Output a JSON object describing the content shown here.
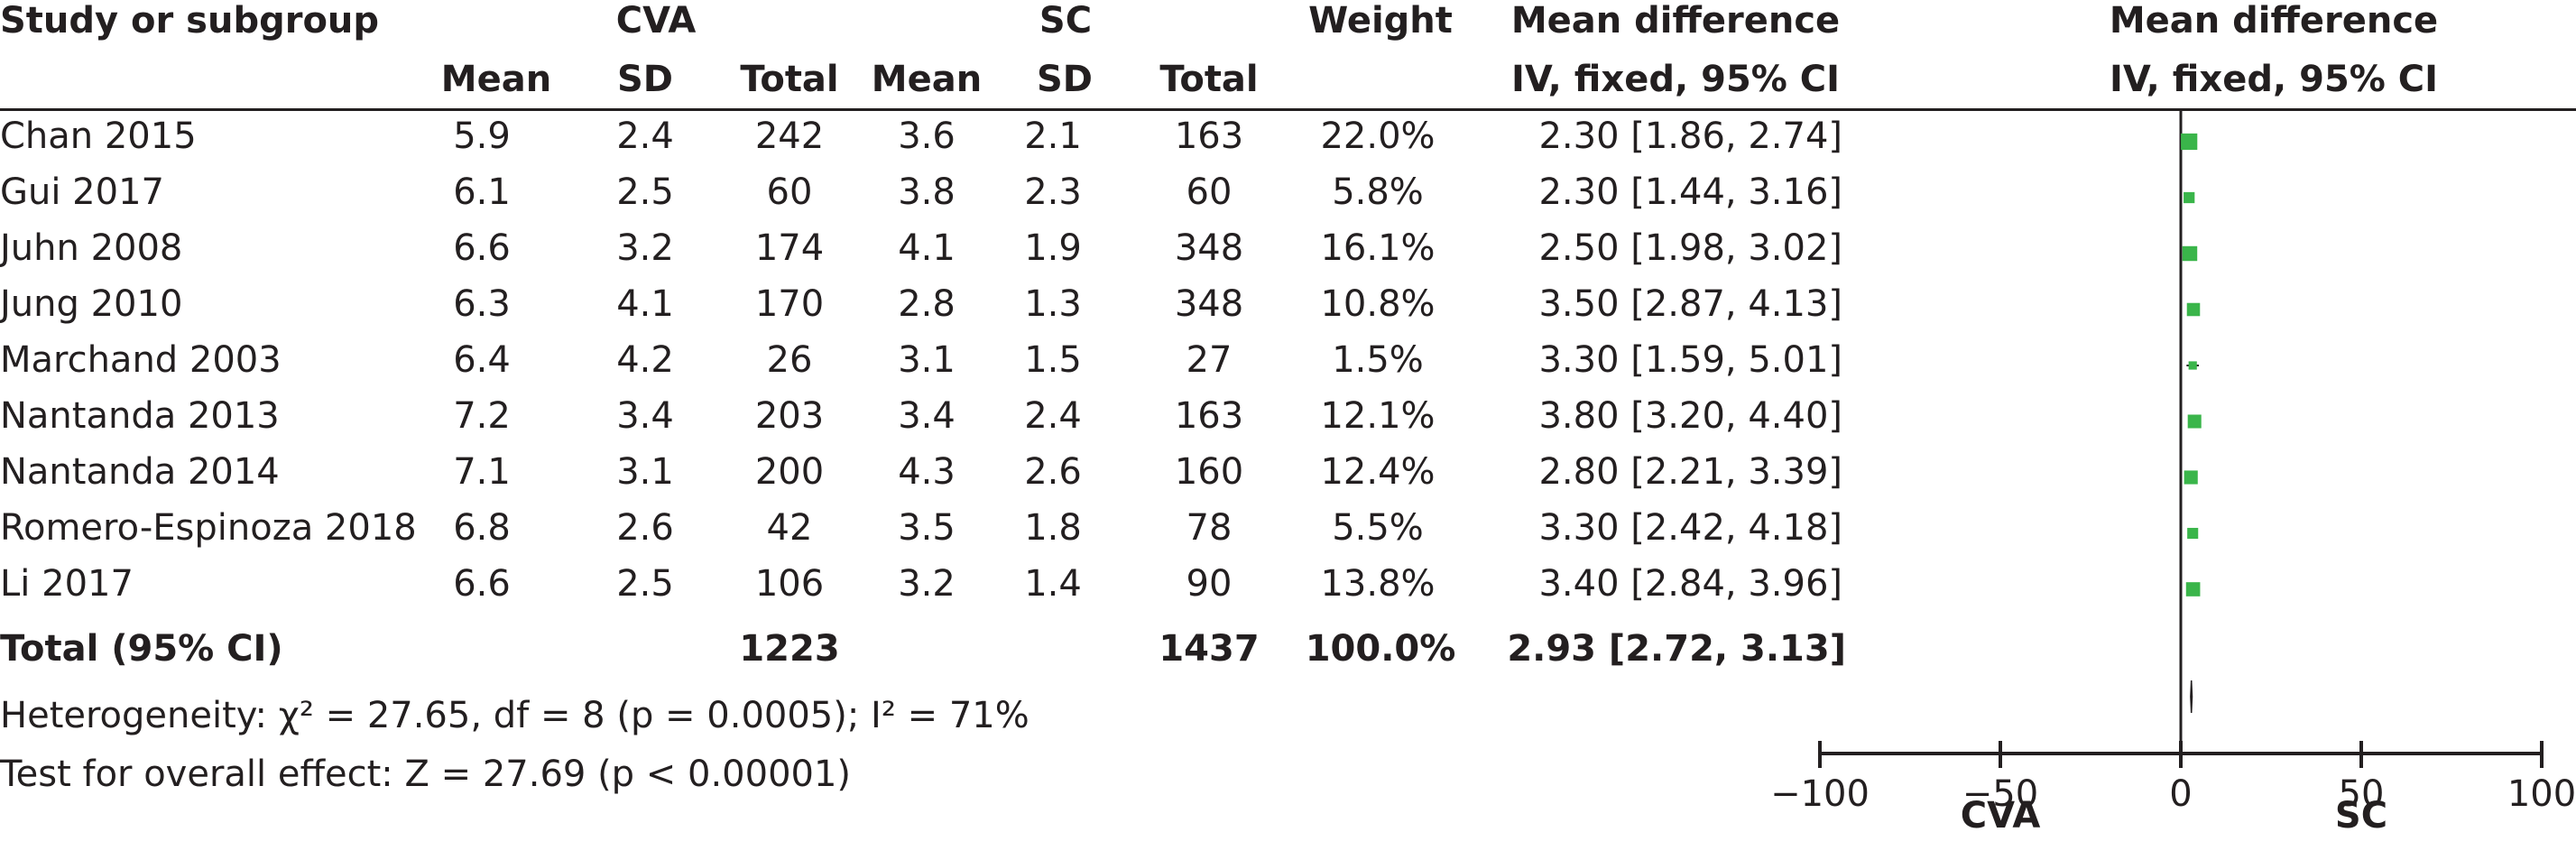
{
  "header": {
    "study_col": "Study or subgroup",
    "group1": "CVA",
    "group2": "SC",
    "weight": "Weight",
    "md_title": "Mean difference",
    "md_subtitle": "IV, fixed, 95% CI",
    "plot_title": "Mean difference",
    "plot_subtitle": "IV, fixed, 95% CI",
    "mean": "Mean",
    "sd": "SD",
    "total": "Total"
  },
  "studies": [
    {
      "name": "Chan 2015",
      "m1": "5.9",
      "sd1": "2.4",
      "n1": "242",
      "m2": "3.6",
      "sd2": "2.1",
      "n2": "163",
      "weight": "22.0%",
      "ci": "2.30 [1.86, 2.74]"
    },
    {
      "name": "Gui 2017",
      "m1": "6.1",
      "sd1": "2.5",
      "n1": "60",
      "m2": "3.8",
      "sd2": "2.3",
      "n2": "60",
      "weight": "5.8%",
      "ci": "2.30 [1.44, 3.16]"
    },
    {
      "name": "Juhn 2008",
      "m1": "6.6",
      "sd1": "3.2",
      "n1": "174",
      "m2": "4.1",
      "sd2": "1.9",
      "n2": "348",
      "weight": "16.1%",
      "ci": "2.50 [1.98, 3.02]"
    },
    {
      "name": "Jung 2010",
      "m1": "6.3",
      "sd1": "4.1",
      "n1": "170",
      "m2": "2.8",
      "sd2": "1.3",
      "n2": "348",
      "weight": "10.8%",
      "ci": "3.50 [2.87, 4.13]"
    },
    {
      "name": "Marchand 2003",
      "m1": "6.4",
      "sd1": "4.2",
      "n1": "26",
      "m2": "3.1",
      "sd2": "1.5",
      "n2": "27",
      "weight": "1.5%",
      "ci": "3.30 [1.59, 5.01]"
    },
    {
      "name": "Nantanda 2013",
      "m1": "7.2",
      "sd1": "3.4",
      "n1": "203",
      "m2": "3.4",
      "sd2": "2.4",
      "n2": "163",
      "weight": "12.1%",
      "ci": "3.80 [3.20, 4.40]"
    },
    {
      "name": "Nantanda 2014",
      "m1": "7.1",
      "sd1": "3.1",
      "n1": "200",
      "m2": "4.3",
      "sd2": "2.6",
      "n2": "160",
      "weight": "12.4%",
      "ci": "2.80 [2.21, 3.39]"
    },
    {
      "name": "Romero-Espinoza 2018",
      "m1": "6.8",
      "sd1": "2.6",
      "n1": "42",
      "m2": "3.5",
      "sd2": "1.8",
      "n2": "78",
      "weight": "5.5%",
      "ci": "3.30 [2.42, 4.18]"
    },
    {
      "name": "Li 2017",
      "m1": "6.6",
      "sd1": "2.5",
      "n1": "106",
      "m2": "3.2",
      "sd2": "1.4",
      "n2": "90",
      "weight": "13.8%",
      "ci": "3.40 [2.84, 3.96]"
    }
  ],
  "total": {
    "label": "Total (95% CI)",
    "n1": "1223",
    "n2": "1437",
    "weight": "100.0%",
    "ci": "2.93 [2.72, 3.13]"
  },
  "footer": {
    "heterogeneity": "Heterogeneity: χ² = 27.65, df = 8 (p = 0.0005); I² = 71%",
    "overall": "Test for overall effect: Z = 27.69 (p < 0.00001)"
  },
  "colors": {
    "marker": "#3ab54a",
    "ink": "#231f20"
  },
  "chart_data": {
    "type": "forest",
    "xlim": [
      -100,
      100
    ],
    "xticks": [
      "−100",
      "−50",
      "0",
      "50",
      "100"
    ],
    "xtick_values": [
      -100,
      -50,
      0,
      50,
      100
    ],
    "favours_left": "CVA",
    "favours_right": "SC",
    "points": [
      {
        "study": "Chan 2015",
        "md": 2.3,
        "lo": 1.86,
        "hi": 2.74,
        "weight": 22.0
      },
      {
        "study": "Gui 2017",
        "md": 2.3,
        "lo": 1.44,
        "hi": 3.16,
        "weight": 5.8
      },
      {
        "study": "Juhn 2008",
        "md": 2.5,
        "lo": 1.98,
        "hi": 3.02,
        "weight": 16.1
      },
      {
        "study": "Jung 2010",
        "md": 3.5,
        "lo": 2.87,
        "hi": 4.13,
        "weight": 10.8
      },
      {
        "study": "Marchand 2003",
        "md": 3.3,
        "lo": 1.59,
        "hi": 5.01,
        "weight": 1.5
      },
      {
        "study": "Nantanda 2013",
        "md": 3.8,
        "lo": 3.2,
        "hi": 4.4,
        "weight": 12.1
      },
      {
        "study": "Nantanda 2014",
        "md": 2.8,
        "lo": 2.21,
        "hi": 3.39,
        "weight": 12.4
      },
      {
        "study": "Romero-Espinoza 2018",
        "md": 3.3,
        "lo": 2.42,
        "hi": 4.18,
        "weight": 5.5
      },
      {
        "study": "Li 2017",
        "md": 3.4,
        "lo": 2.84,
        "hi": 3.96,
        "weight": 13.8
      }
    ],
    "pooled": {
      "md": 2.93,
      "lo": 2.72,
      "hi": 3.13
    }
  }
}
